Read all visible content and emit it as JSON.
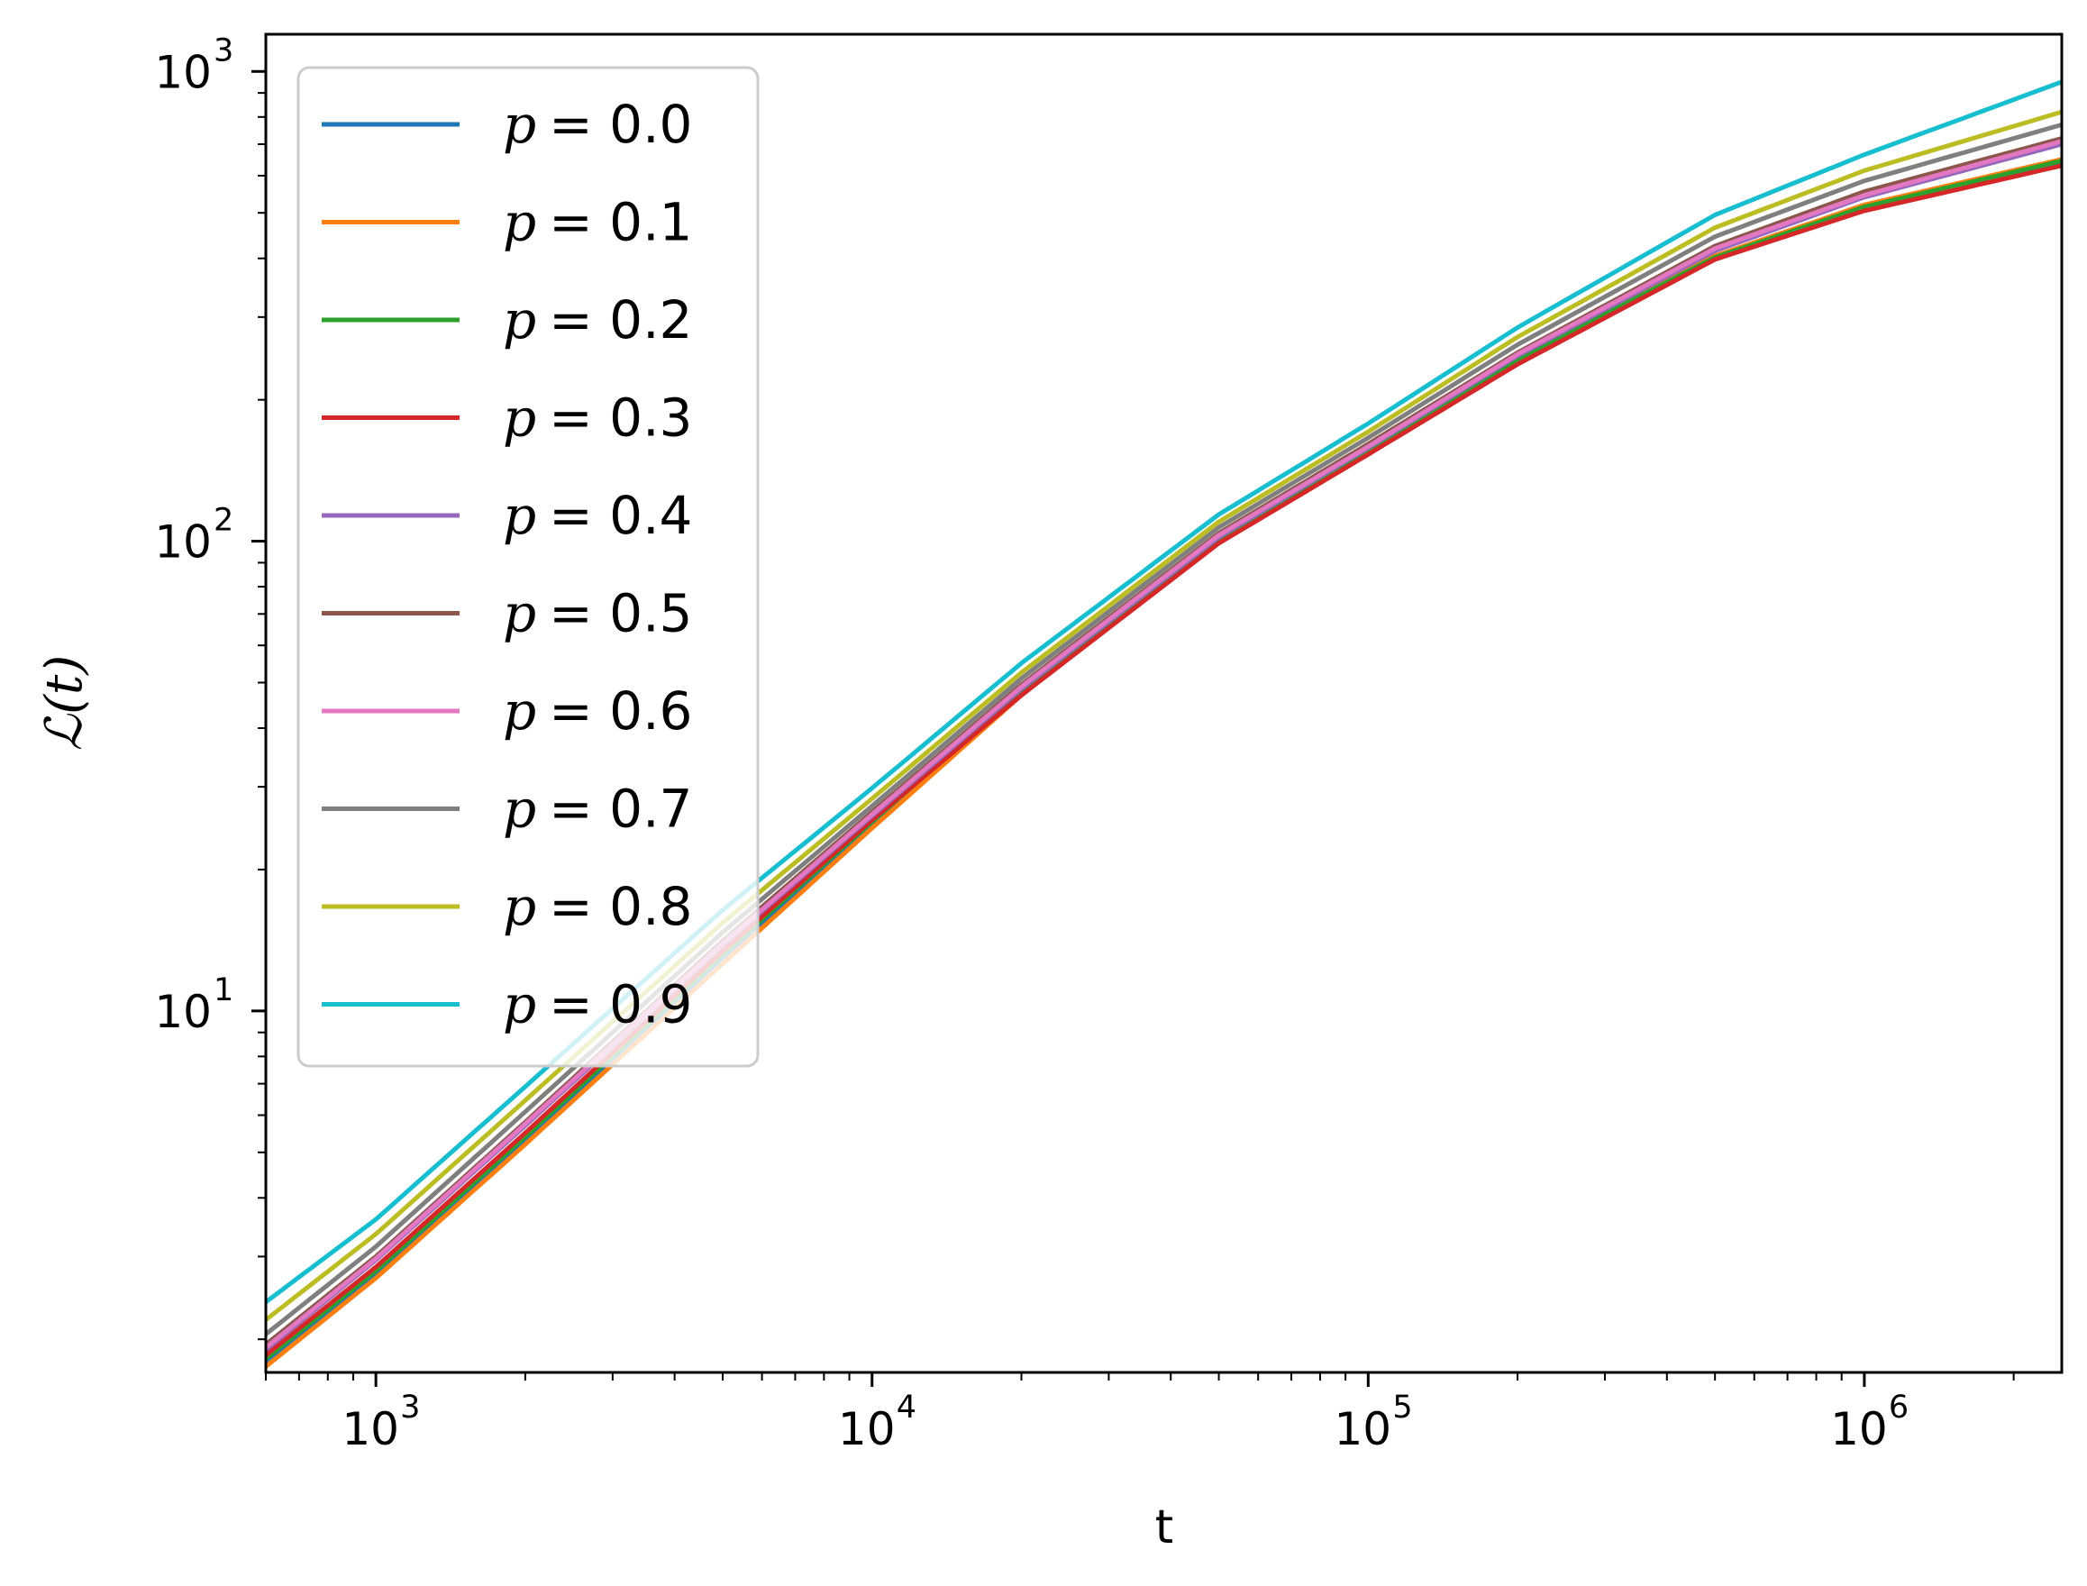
{
  "chart_data": {
    "type": "line",
    "title": "",
    "xlabel": "t",
    "ylabel": "ℒ(t)",
    "xscale": "log",
    "yscale": "log",
    "xlim": [
      600,
      2500000
    ],
    "ylim": [
      1.7,
      1200
    ],
    "x_ticks": [
      {
        "base": "10",
        "exp": "3",
        "value": 1000
      },
      {
        "base": "10",
        "exp": "4",
        "value": 10000
      },
      {
        "base": "10",
        "exp": "5",
        "value": 100000
      },
      {
        "base": "10",
        "exp": "6",
        "value": 1000000
      }
    ],
    "y_ticks": [
      {
        "base": "10",
        "exp": "1",
        "value": 10
      },
      {
        "base": "10",
        "exp": "2",
        "value": 100
      },
      {
        "base": "10",
        "exp": "3",
        "value": 1000
      }
    ],
    "grid": false,
    "legend_placement": "upper-left",
    "x": [
      600,
      1000,
      2000,
      5000,
      10000,
      20000,
      50000,
      100000,
      200000,
      500000,
      1000000,
      2500000
    ],
    "series": [
      {
        "name": "p = 0.0",
        "label_var": "p",
        "label_val": "= 0.0",
        "color": "#1f77b4",
        "values": [
          1.8,
          2.75,
          5.3,
          13,
          25,
          47,
          100,
          155,
          240,
          400,
          510,
          640
        ]
      },
      {
        "name": "p = 0.1",
        "label_var": "p",
        "label_val": "= 0.1",
        "color": "#ff7f0e",
        "values": [
          1.75,
          2.7,
          5.2,
          12.6,
          24.5,
          47,
          100,
          156,
          245,
          405,
          520,
          650
        ]
      },
      {
        "name": "p = 0.2",
        "label_var": "p",
        "label_val": "= 0.2",
        "color": "#2ca02c",
        "values": [
          1.82,
          2.8,
          5.4,
          13.2,
          25.3,
          48,
          101,
          157,
          244,
          402,
          515,
          645
        ]
      },
      {
        "name": "p = 0.3",
        "label_var": "p",
        "label_val": "= 0.3",
        "color": "#d62728",
        "values": [
          1.85,
          2.85,
          5.5,
          13.4,
          25.5,
          47,
          99,
          153,
          238,
          398,
          505,
          630
        ]
      },
      {
        "name": "p = 0.4",
        "label_var": "p",
        "label_val": "= 0.4",
        "color": "#9467bd",
        "values": [
          1.9,
          2.95,
          5.7,
          13.8,
          26,
          48.5,
          102,
          158,
          248,
          415,
          540,
          700
        ]
      },
      {
        "name": "p = 0.5",
        "label_var": "p",
        "label_val": "= 0.5",
        "color": "#8c564b",
        "values": [
          1.95,
          3.0,
          5.8,
          14.1,
          26.5,
          49.5,
          104,
          161,
          252,
          425,
          555,
          720
        ]
      },
      {
        "name": "p = 0.6",
        "label_var": "p",
        "label_val": "= 0.6",
        "color": "#e377c2",
        "values": [
          1.92,
          2.97,
          5.75,
          13.9,
          26.2,
          49,
          103,
          159,
          250,
          420,
          545,
          710
        ]
      },
      {
        "name": "p = 0.7",
        "label_var": "p",
        "label_val": "= 0.7",
        "color": "#7f7f7f",
        "values": [
          2.05,
          3.15,
          6.1,
          14.7,
          27.3,
          51,
          107,
          166,
          262,
          445,
          585,
          770
        ]
      },
      {
        "name": "p = 0.8",
        "label_var": "p",
        "label_val": "= 0.8",
        "color": "#bcbd22",
        "values": [
          2.2,
          3.35,
          6.45,
          15.4,
          28.3,
          52.5,
          110,
          171,
          272,
          465,
          615,
          820
        ]
      },
      {
        "name": "p = 0.9",
        "label_var": "p",
        "label_val": "= 0.9",
        "color": "#17becf",
        "values": [
          2.4,
          3.6,
          6.9,
          16.4,
          29.8,
          55,
          114,
          178,
          285,
          495,
          665,
          950
        ]
      }
    ]
  }
}
